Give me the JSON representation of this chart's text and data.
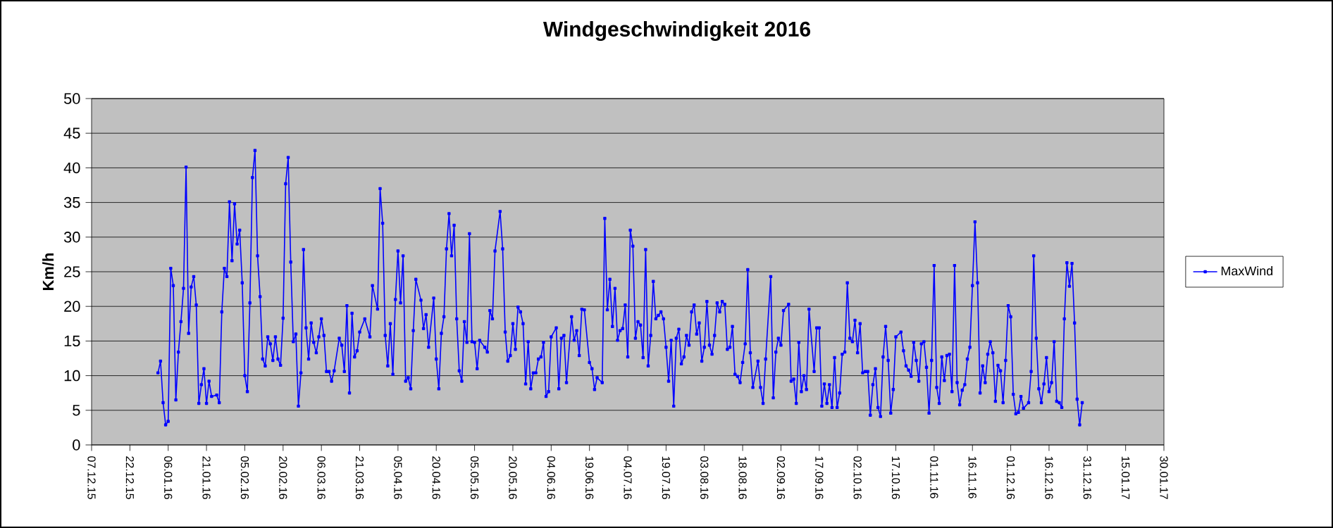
{
  "chart_data": {
    "type": "line",
    "title": "Windgeschwindigkeit 2016",
    "ylabel": "Km/h",
    "xlim": [
      "2015-12-07",
      "2017-01-30"
    ],
    "xticks": [
      {
        "value": "2015-12-07",
        "label": "07.12.15"
      },
      {
        "value": "2015-12-22",
        "label": "22.12.15"
      },
      {
        "value": "2016-01-06",
        "label": "06.01.16"
      },
      {
        "value": "2016-01-21",
        "label": "21.01.16"
      },
      {
        "value": "2016-02-05",
        "label": "05.02.16"
      },
      {
        "value": "2016-02-20",
        "label": "20.02.16"
      },
      {
        "value": "2016-03-06",
        "label": "06.03.16"
      },
      {
        "value": "2016-03-21",
        "label": "21.03.16"
      },
      {
        "value": "2016-04-05",
        "label": "05.04.16"
      },
      {
        "value": "2016-04-20",
        "label": "20.04.16"
      },
      {
        "value": "2016-05-05",
        "label": "05.05.16"
      },
      {
        "value": "2016-05-20",
        "label": "20.05.16"
      },
      {
        "value": "2016-06-04",
        "label": "04.06.16"
      },
      {
        "value": "2016-06-19",
        "label": "19.06.16"
      },
      {
        "value": "2016-07-04",
        "label": "04.07.16"
      },
      {
        "value": "2016-07-19",
        "label": "19.07.16"
      },
      {
        "value": "2016-08-03",
        "label": "03.08.16"
      },
      {
        "value": "2016-08-18",
        "label": "18.08.16"
      },
      {
        "value": "2016-09-02",
        "label": "02.09.16"
      },
      {
        "value": "2016-09-17",
        "label": "17.09.16"
      },
      {
        "value": "2016-10-02",
        "label": "02.10.16"
      },
      {
        "value": "2016-10-17",
        "label": "17.10.16"
      },
      {
        "value": "2016-11-01",
        "label": "01.11.16"
      },
      {
        "value": "2016-11-16",
        "label": "16.11.16"
      },
      {
        "value": "2016-12-01",
        "label": "01.12.16"
      },
      {
        "value": "2016-12-16",
        "label": "16.12.16"
      },
      {
        "value": "2016-12-31",
        "label": "31.12.16"
      },
      {
        "value": "2017-01-15",
        "label": "15.01.17"
      },
      {
        "value": "2017-01-30",
        "label": "30.01.17"
      }
    ],
    "ylim": [
      0,
      50
    ],
    "yticks": [
      0,
      5,
      10,
      15,
      20,
      25,
      30,
      35,
      40,
      45,
      50
    ],
    "grid": "y",
    "legend": "right",
    "marker": "square",
    "line_style": "solid",
    "x": [
      "2016-01-02",
      "2016-01-03",
      "2016-01-04",
      "2016-01-05",
      "2016-01-06",
      "2016-01-07",
      "2016-01-08",
      "2016-01-09",
      "2016-01-10",
      "2016-01-11",
      "2016-01-12",
      "2016-01-13",
      "2016-01-14",
      "2016-01-15",
      "2016-01-16",
      "2016-01-17",
      "2016-01-18",
      "2016-01-19",
      "2016-01-20",
      "2016-01-21",
      "2016-01-22",
      "2016-01-23",
      "2016-01-25",
      "2016-01-26",
      "2016-01-27",
      "2016-01-28",
      "2016-01-29",
      "2016-01-30",
      "2016-01-31",
      "2016-02-01",
      "2016-02-02",
      "2016-02-03",
      "2016-02-04",
      "2016-02-05",
      "2016-02-06",
      "2016-02-07",
      "2016-02-08",
      "2016-02-09",
      "2016-02-10",
      "2016-02-11",
      "2016-02-12",
      "2016-02-13",
      "2016-02-14",
      "2016-02-15",
      "2016-02-16",
      "2016-02-17",
      "2016-02-18",
      "2016-02-19",
      "2016-02-20",
      "2016-02-21",
      "2016-02-22",
      "2016-02-23",
      "2016-02-24",
      "2016-02-25",
      "2016-02-26",
      "2016-02-27",
      "2016-02-28",
      "2016-02-29",
      "2016-03-01",
      "2016-03-02",
      "2016-03-03",
      "2016-03-04",
      "2016-03-05",
      "2016-03-06",
      "2016-03-07",
      "2016-03-08",
      "2016-03-09",
      "2016-03-10",
      "2016-03-11",
      "2016-03-13",
      "2016-03-14",
      "2016-03-15",
      "2016-03-16",
      "2016-03-17",
      "2016-03-18",
      "2016-03-19",
      "2016-03-20",
      "2016-03-21",
      "2016-03-23",
      "2016-03-25",
      "2016-03-26",
      "2016-03-28",
      "2016-03-29",
      "2016-03-30",
      "2016-03-31",
      "2016-04-01",
      "2016-04-02",
      "2016-04-03",
      "2016-04-04",
      "2016-04-05",
      "2016-04-06",
      "2016-04-07",
      "2016-04-08",
      "2016-04-09",
      "2016-04-10",
      "2016-04-11",
      "2016-04-12",
      "2016-04-14",
      "2016-04-15",
      "2016-04-16",
      "2016-04-17",
      "2016-04-19",
      "2016-04-20",
      "2016-04-21",
      "2016-04-22",
      "2016-04-23",
      "2016-04-24",
      "2016-04-25",
      "2016-04-26",
      "2016-04-27",
      "2016-04-28",
      "2016-04-29",
      "2016-04-30",
      "2016-05-01",
      "2016-05-02",
      "2016-05-03",
      "2016-05-04",
      "2016-05-05",
      "2016-05-06",
      "2016-05-07",
      "2016-05-09",
      "2016-05-10",
      "2016-05-11",
      "2016-05-12",
      "2016-05-13",
      "2016-05-15",
      "2016-05-16",
      "2016-05-17",
      "2016-05-18",
      "2016-05-19",
      "2016-05-20",
      "2016-05-21",
      "2016-05-22",
      "2016-05-23",
      "2016-05-24",
      "2016-05-25",
      "2016-05-26",
      "2016-05-27",
      "2016-05-28",
      "2016-05-29",
      "2016-05-30",
      "2016-05-31",
      "2016-06-01",
      "2016-06-02",
      "2016-06-03",
      "2016-06-04",
      "2016-06-06",
      "2016-06-07",
      "2016-06-08",
      "2016-06-09",
      "2016-06-10",
      "2016-06-12",
      "2016-06-13",
      "2016-06-14",
      "2016-06-15",
      "2016-06-16",
      "2016-06-17",
      "2016-06-19",
      "2016-06-20",
      "2016-06-21",
      "2016-06-22",
      "2016-06-24",
      "2016-06-25",
      "2016-06-26",
      "2016-06-27",
      "2016-06-28",
      "2016-06-29",
      "2016-06-30",
      "2016-07-01",
      "2016-07-02",
      "2016-07-03",
      "2016-07-04",
      "2016-07-05",
      "2016-07-06",
      "2016-07-07",
      "2016-07-08",
      "2016-07-09",
      "2016-07-10",
      "2016-07-11",
      "2016-07-12",
      "2016-07-13",
      "2016-07-14",
      "2016-07-15",
      "2016-07-16",
      "2016-07-17",
      "2016-07-18",
      "2016-07-19",
      "2016-07-20",
      "2016-07-21",
      "2016-07-22",
      "2016-07-23",
      "2016-07-24",
      "2016-07-25",
      "2016-07-26",
      "2016-07-27",
      "2016-07-28",
      "2016-07-29",
      "2016-07-30",
      "2016-07-31",
      "2016-08-01",
      "2016-08-02",
      "2016-08-03",
      "2016-08-04",
      "2016-08-05",
      "2016-08-06",
      "2016-08-07",
      "2016-08-08",
      "2016-08-09",
      "2016-08-10",
      "2016-08-11",
      "2016-08-12",
      "2016-08-13",
      "2016-08-14",
      "2016-08-15",
      "2016-08-16",
      "2016-08-17",
      "2016-08-18",
      "2016-08-19",
      "2016-08-20",
      "2016-08-21",
      "2016-08-22",
      "2016-08-24",
      "2016-08-25",
      "2016-08-26",
      "2016-08-27",
      "2016-08-29",
      "2016-08-30",
      "2016-08-31",
      "2016-09-01",
      "2016-09-02",
      "2016-09-03",
      "2016-09-05",
      "2016-09-06",
      "2016-09-07",
      "2016-09-08",
      "2016-09-09",
      "2016-09-10",
      "2016-09-11",
      "2016-09-12",
      "2016-09-13",
      "2016-09-15",
      "2016-09-16",
      "2016-09-17",
      "2016-09-18",
      "2016-09-19",
      "2016-09-20",
      "2016-09-21",
      "2016-09-22",
      "2016-09-23",
      "2016-09-24",
      "2016-09-25",
      "2016-09-26",
      "2016-09-27",
      "2016-09-28",
      "2016-09-29",
      "2016-09-30",
      "2016-10-01",
      "2016-10-02",
      "2016-10-03",
      "2016-10-04",
      "2016-10-05",
      "2016-10-06",
      "2016-10-07",
      "2016-10-08",
      "2016-10-09",
      "2016-10-10",
      "2016-10-11",
      "2016-10-12",
      "2016-10-13",
      "2016-10-14",
      "2016-10-15",
      "2016-10-16",
      "2016-10-17",
      "2016-10-19",
      "2016-10-20",
      "2016-10-21",
      "2016-10-22",
      "2016-10-23",
      "2016-10-24",
      "2016-10-25",
      "2016-10-26",
      "2016-10-27",
      "2016-10-28",
      "2016-10-29",
      "2016-10-30",
      "2016-10-31",
      "2016-11-01",
      "2016-11-02",
      "2016-11-03",
      "2016-11-04",
      "2016-11-05",
      "2016-11-06",
      "2016-11-07",
      "2016-11-08",
      "2016-11-09",
      "2016-11-10",
      "2016-11-11",
      "2016-11-12",
      "2016-11-13",
      "2016-11-14",
      "2016-11-15",
      "2016-11-16",
      "2016-11-17",
      "2016-11-18",
      "2016-11-19",
      "2016-11-20",
      "2016-11-21",
      "2016-11-22",
      "2016-11-23",
      "2016-11-24",
      "2016-11-25",
      "2016-11-26",
      "2016-11-27",
      "2016-11-28",
      "2016-11-29",
      "2016-11-30",
      "2016-12-01",
      "2016-12-02",
      "2016-12-03",
      "2016-12-04",
      "2016-12-05",
      "2016-12-06",
      "2016-12-08",
      "2016-12-09",
      "2016-12-10",
      "2016-12-11",
      "2016-12-12",
      "2016-12-13",
      "2016-12-14",
      "2016-12-15",
      "2016-12-16",
      "2016-12-17",
      "2016-12-18",
      "2016-12-19",
      "2016-12-20",
      "2016-12-21",
      "2016-12-22",
      "2016-12-23",
      "2016-12-24",
      "2016-12-25",
      "2016-12-26",
      "2016-12-27",
      "2016-12-28",
      "2016-12-29"
    ],
    "series": [
      {
        "name": "MaxWind",
        "color": "#0000ff",
        "values": [
          10.4,
          12.1,
          6.1,
          2.9,
          3.4,
          25.5,
          23.0,
          6.5,
          13.4,
          17.8,
          22.6,
          40.1,
          16.1,
          22.8,
          24.3,
          20.2,
          6.0,
          8.7,
          11.0,
          6.0,
          9.2,
          7.0,
          7.2,
          6.1,
          19.2,
          25.5,
          24.3,
          35.1,
          26.6,
          34.8,
          29.0,
          31.0,
          23.4,
          10.0,
          7.7,
          20.5,
          38.6,
          42.5,
          27.3,
          21.4,
          12.4,
          11.4,
          15.6,
          14.6,
          12.2,
          15.6,
          12.4,
          11.5,
          18.3,
          37.7,
          41.5,
          26.4,
          14.9,
          16.0,
          5.6,
          10.4,
          28.2,
          16.9,
          12.4,
          17.6,
          14.8,
          13.3,
          15.6,
          18.2,
          15.8,
          10.6,
          10.6,
          9.2,
          10.7,
          15.4,
          14.4,
          10.6,
          20.1,
          7.5,
          19.0,
          12.7,
          13.6,
          16.3,
          18.2,
          15.6,
          23.0,
          19.6,
          37.0,
          32.0,
          15.8,
          11.4,
          17.5,
          10.2,
          21.0,
          28.0,
          20.5,
          27.3,
          9.2,
          9.7,
          8.1,
          16.5,
          23.9,
          20.9,
          16.8,
          18.8,
          14.1,
          21.2,
          12.4,
          8.1,
          16.1,
          18.5,
          28.3,
          33.4,
          27.3,
          31.7,
          18.2,
          10.7,
          9.2,
          17.8,
          14.8,
          30.5,
          14.9,
          14.8,
          11.0,
          15.1,
          14.1,
          13.4,
          19.4,
          18.2,
          28.0,
          33.7,
          28.3,
          16.3,
          12.1,
          12.9,
          17.5,
          13.8,
          19.9,
          19.2,
          17.5,
          8.8,
          14.9,
          8.1,
          10.4,
          10.4,
          12.4,
          12.7,
          14.8,
          7.0,
          7.7,
          15.6,
          16.9,
          8.1,
          15.4,
          15.8,
          9.0,
          18.5,
          15.1,
          16.5,
          12.9,
          19.6,
          19.5,
          11.9,
          11.0,
          8.0,
          9.7,
          9.0,
          32.7,
          19.5,
          23.9,
          17.1,
          22.6,
          15.1,
          16.5,
          16.8,
          20.2,
          12.7,
          31.0,
          28.7,
          15.4,
          17.8,
          17.3,
          12.6,
          28.2,
          11.4,
          15.8,
          23.6,
          18.2,
          18.7,
          19.2,
          18.2,
          14.1,
          9.2,
          15.1,
          5.6,
          15.4,
          16.7,
          11.7,
          12.7,
          15.8,
          14.4,
          19.2,
          20.2,
          16.0,
          17.6,
          12.1,
          14.1,
          20.7,
          14.4,
          13.1,
          15.8,
          20.5,
          19.2,
          20.7,
          20.3,
          13.8,
          14.1,
          17.1,
          10.2,
          9.9,
          9.0,
          11.9,
          14.6,
          25.3,
          13.3,
          8.3,
          12.1,
          8.3,
          6.0,
          12.4,
          24.3,
          6.8,
          13.4,
          15.4,
          14.4,
          19.4,
          20.3,
          9.2,
          9.5,
          6.0,
          14.8,
          7.7,
          10.0,
          8.0,
          19.6,
          10.6,
          16.9,
          16.9,
          5.6,
          8.8,
          6.0,
          8.7,
          5.4,
          12.6,
          5.4,
          7.5,
          13.1,
          13.4,
          23.4,
          15.4,
          14.9,
          18.0,
          13.3,
          17.5,
          10.4,
          10.6,
          10.6,
          4.3,
          8.7,
          11.0,
          5.4,
          4.1,
          12.7,
          17.1,
          12.2,
          4.6,
          8.0,
          15.6,
          16.3,
          13.6,
          11.4,
          10.8,
          9.9,
          14.8,
          12.2,
          9.2,
          14.6,
          14.9,
          11.2,
          4.6,
          12.2,
          25.9,
          8.3,
          6.0,
          12.7,
          9.3,
          12.9,
          13.1,
          7.7,
          25.9,
          9.0,
          5.8,
          7.9,
          8.7,
          12.4,
          14.1,
          23.0,
          32.2,
          23.4,
          7.5,
          11.4,
          9.0,
          13.1,
          14.9,
          13.3,
          6.3,
          11.5,
          10.7,
          6.1,
          12.2,
          20.1,
          18.5,
          7.3,
          4.5,
          4.7,
          7.0,
          5.3,
          6.1,
          10.6,
          27.3,
          15.4,
          8.1,
          6.1,
          8.8,
          12.6,
          7.7,
          9.0,
          14.9,
          6.3,
          6.1,
          5.4,
          18.2,
          26.3,
          22.9,
          26.2,
          17.6,
          6.6,
          2.9,
          6.1
        ]
      }
    ]
  }
}
